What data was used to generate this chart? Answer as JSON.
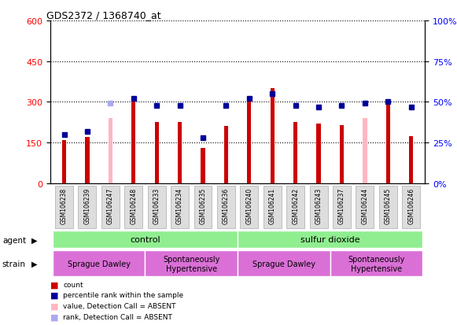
{
  "title": "GDS2372 / 1368740_at",
  "samples": [
    "GSM106238",
    "GSM106239",
    "GSM106247",
    "GSM106248",
    "GSM106233",
    "GSM106234",
    "GSM106235",
    "GSM106236",
    "GSM106240",
    "GSM106241",
    "GSM106242",
    "GSM106243",
    "GSM106237",
    "GSM106244",
    "GSM106245",
    "GSM106246"
  ],
  "count_values": [
    160,
    170,
    0,
    310,
    225,
    225,
    130,
    210,
    305,
    350,
    225,
    220,
    215,
    0,
    300,
    175
  ],
  "rank_values": [
    30,
    32,
    49,
    52,
    48,
    48,
    28,
    48,
    52,
    55,
    48,
    47,
    48,
    49,
    50,
    47
  ],
  "absent_count": [
    null,
    null,
    240,
    null,
    null,
    null,
    null,
    null,
    null,
    null,
    null,
    null,
    null,
    240,
    null,
    null
  ],
  "absent_rank": [
    null,
    null,
    49,
    null,
    null,
    null,
    null,
    null,
    null,
    null,
    null,
    null,
    null,
    null,
    null,
    null
  ],
  "count_present": [
    true,
    true,
    false,
    true,
    true,
    true,
    true,
    true,
    true,
    true,
    true,
    true,
    true,
    false,
    true,
    true
  ],
  "rank_absent": [
    false,
    false,
    false,
    false,
    false,
    false,
    false,
    false,
    false,
    false,
    false,
    false,
    false,
    false,
    false,
    false
  ],
  "ylim_left": [
    0,
    600
  ],
  "ylim_right": [
    0,
    100
  ],
  "yticks_left": [
    0,
    150,
    300,
    450,
    600
  ],
  "yticks_right": [
    0,
    25,
    50,
    75,
    100
  ],
  "count_color": "#CC0000",
  "rank_color": "#000099",
  "absent_count_color": "#FFB6C1",
  "absent_rank_color": "#AAAAEE",
  "bg_color": "#FFFFFF",
  "grid_color": "#000000",
  "legend_items": [
    {
      "label": "count",
      "color": "#CC0000"
    },
    {
      "label": "percentile rank within the sample",
      "color": "#000099"
    },
    {
      "label": "value, Detection Call = ABSENT",
      "color": "#FFB6C1"
    },
    {
      "label": "rank, Detection Call = ABSENT",
      "color": "#AAAAEE"
    }
  ],
  "agent_groups": [
    {
      "label": "control",
      "start": 0,
      "end": 8
    },
    {
      "label": "sulfur dioxide",
      "start": 8,
      "end": 16
    }
  ],
  "strain_groups": [
    {
      "label": "Sprague Dawley",
      "start": 0,
      "end": 4
    },
    {
      "label": "Spontaneously\nHypertensive",
      "start": 4,
      "end": 8
    },
    {
      "label": "Sprague Dawley",
      "start": 8,
      "end": 12
    },
    {
      "label": "Spontaneously\nHypertensive",
      "start": 12,
      "end": 16
    }
  ]
}
